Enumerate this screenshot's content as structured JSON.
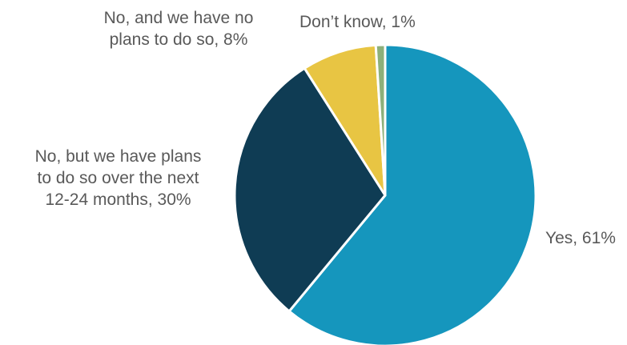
{
  "chart_data": {
    "type": "pie",
    "title": "",
    "categories": [
      "Yes",
      "No, but we have plans to do so over the next 12-24 months",
      "No, and we have no plans to do so",
      "Don’t know"
    ],
    "values": [
      61,
      30,
      8,
      1
    ],
    "unit": "%",
    "colors": [
      "#1596bd",
      "#0f3c54",
      "#e8c543",
      "#8db07a"
    ],
    "start_angle_deg": 0,
    "direction": "clockwise",
    "labels": {
      "yes": [
        "Yes, 61%"
      ],
      "no_but_plans": [
        "No, but we have plans",
        "to do so over the next",
        "12-24 months, 30%"
      ],
      "no_plans": [
        "No, and we have no",
        "plans to do so, 8%"
      ],
      "dont_know": [
        "Don’t know, 1%"
      ]
    },
    "legend": "none"
  }
}
